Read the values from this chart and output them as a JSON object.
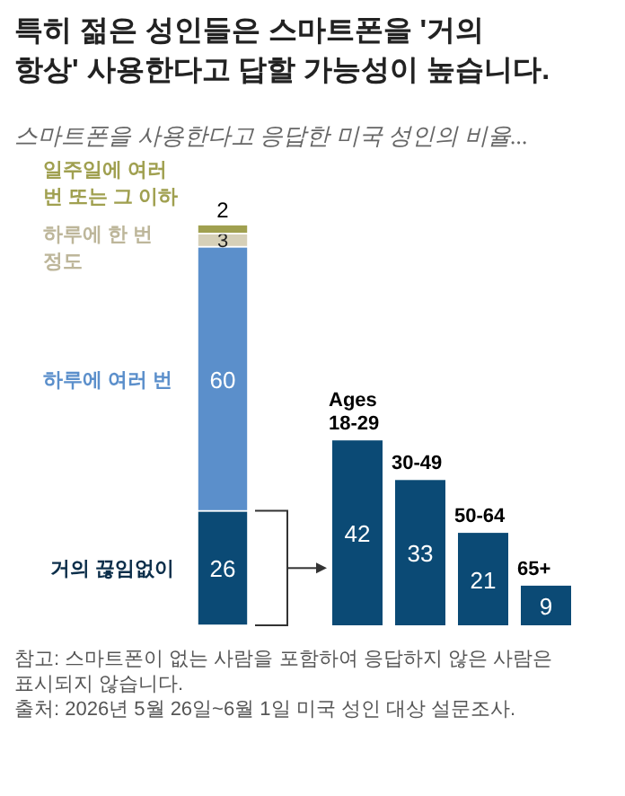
{
  "chart_data": [
    {
      "type": "bar",
      "stacked": true,
      "title": "특히 젊은 성인들은 스마트폰을 '거의 항상' 사용한다고 답할 가능성이 높습니다.",
      "subtitle": "스마트폰을 사용한다고 응답한 미국 성인의 비율...",
      "categories": [
        null
      ],
      "data_labels": true,
      "series": [
        {
          "name": "거의 끊임없이",
          "color": "#0b4a75",
          "values": [
            26
          ]
        },
        {
          "name": "하루에 여러 번",
          "color": "#5b8fcb",
          "values": [
            60
          ]
        },
        {
          "name": "하루에 한 번 정도",
          "color": "#d6d0b8",
          "values": [
            3
          ]
        },
        {
          "name": "일주일에 여러 번 또는 그 이하",
          "color": "#a0a050",
          "values": [
            2
          ]
        }
      ]
    },
    {
      "type": "bar",
      "categories": [
        "Ages 18-29",
        "30-49",
        "50-64",
        "65+"
      ],
      "values": [
        42,
        33,
        21,
        9
      ],
      "color": "#0b4a75",
      "data_labels": true,
      "annotations": [
        "참고: 스마트폰이 없는 사람을 포함하여 응답하지 않은 사람은 표시되지 않습니다.",
        "출처: 2026년 5월 26일~6월 1일 미국 성인 대상 설문조사."
      ]
    }
  ]
}
